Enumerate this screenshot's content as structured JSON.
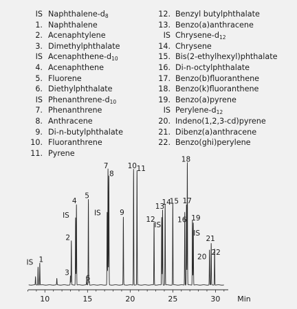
{
  "legend": [
    {
      "key": "IS",
      "name": "Naphthalene-d",
      "sub": "8"
    },
    {
      "key": "1.",
      "name": "Naphthalene"
    },
    {
      "key": "2.",
      "name": "Acenaphtylene"
    },
    {
      "key": "3.",
      "name": "Dimethylphthalate"
    },
    {
      "key": "IS",
      "name": "Acenaphthene-d",
      "sub": "10"
    },
    {
      "key": "4.",
      "name": "Acenaphthene"
    },
    {
      "key": "5.",
      "name": "Fluorene"
    },
    {
      "key": "6.",
      "name": "Diethylphthalate"
    },
    {
      "key": "IS",
      "name": "Phenanthrene-d",
      "sub": "10"
    },
    {
      "key": "7.",
      "name": "Phenanthrene"
    },
    {
      "key": "8.",
      "name": "Anthracene"
    },
    {
      "key": "9.",
      "name": "Di-n-butylphthalate"
    },
    {
      "key": "10.",
      "name": "Fluoranthrene"
    },
    {
      "key": "11.",
      "name": "Pyrene"
    },
    {
      "key": "12.",
      "name": "Benzyl butylphthalate"
    },
    {
      "key": "13.",
      "name": "Benzo(a)anthracene"
    },
    {
      "key": "IS",
      "name": "Chrysene-d",
      "sub": "12"
    },
    {
      "key": "14.",
      "name": "Chrysene"
    },
    {
      "key": "15.",
      "name": "Bis(2-ethylhexyl)phthalate"
    },
    {
      "key": "16.",
      "name": "Di-n-octylphthalate"
    },
    {
      "key": "17.",
      "name": "Benzo(b)fluoranthene"
    },
    {
      "key": "18.",
      "name": "Benzo(k)fluoranthene"
    },
    {
      "key": "19.",
      "name": "Benzo(a)pyrene"
    },
    {
      "key": "IS",
      "name": "Perylene-d",
      "sub": "12"
    },
    {
      "key": "20.",
      "name": "Indeno(1,2,3-cd)pyrene"
    },
    {
      "key": "21.",
      "name": "Dibenz(a)anthracene"
    },
    {
      "key": "22.",
      "name": "Benzo(ghi)perylene"
    }
  ],
  "chart_data": {
    "type": "line",
    "xlabel": "Min",
    "ylabel": "",
    "xlim": [
      7.8,
      31.5
    ],
    "ylim": [
      0,
      100
    ],
    "x_ticks": [
      10,
      15,
      20,
      25,
      30
    ],
    "grid": false,
    "peaks": [
      {
        "label": "",
        "x": 8.9,
        "y": 6
      },
      {
        "label": "IS",
        "x": 9.2,
        "y": 14
      },
      {
        "label": "1",
        "x": 9.4,
        "y": 17
      },
      {
        "label": "",
        "x": 11.4,
        "y": 5
      },
      {
        "label": "3",
        "x": 13.0,
        "y": 7
      },
      {
        "label": "2",
        "x": 13.1,
        "y": 34
      },
      {
        "label": "IS",
        "x": 13.6,
        "y": 52
      },
      {
        "label": "4",
        "x": 13.7,
        "y": 62
      },
      {
        "label": "",
        "x": 14.9,
        "y": 4
      },
      {
        "label": "5",
        "x": 15.1,
        "y": 66
      },
      {
        "label": "6",
        "x": 15.2,
        "y": 3
      },
      {
        "label": "IS",
        "x": 17.3,
        "y": 56
      },
      {
        "label": "7",
        "x": 17.4,
        "y": 89
      },
      {
        "label": "8",
        "x": 17.5,
        "y": 84
      },
      {
        "label": "9",
        "x": 19.2,
        "y": 52
      },
      {
        "label": "10",
        "x": 20.4,
        "y": 89
      },
      {
        "label": "11",
        "x": 20.8,
        "y": 88
      },
      {
        "label": "12",
        "x": 22.8,
        "y": 48
      },
      {
        "label": "IS",
        "x": 23.7,
        "y": 52
      },
      {
        "label": "13",
        "x": 23.8,
        "y": 58
      },
      {
        "label": "14",
        "x": 24.1,
        "y": 62
      },
      {
        "label": "15",
        "x": 25.0,
        "y": 63
      },
      {
        "label": "16",
        "x": 26.4,
        "y": 56
      },
      {
        "label": "17",
        "x": 26.6,
        "y": 62
      },
      {
        "label": "18",
        "x": 26.7,
        "y": 94
      },
      {
        "label": "19",
        "x": 27.3,
        "y": 50
      },
      {
        "label": "IS",
        "x": 27.4,
        "y": 48
      },
      {
        "label": "20",
        "x": 29.3,
        "y": 27
      },
      {
        "label": "21",
        "x": 29.5,
        "y": 32
      },
      {
        "label": "22",
        "x": 29.9,
        "y": 28
      }
    ]
  }
}
